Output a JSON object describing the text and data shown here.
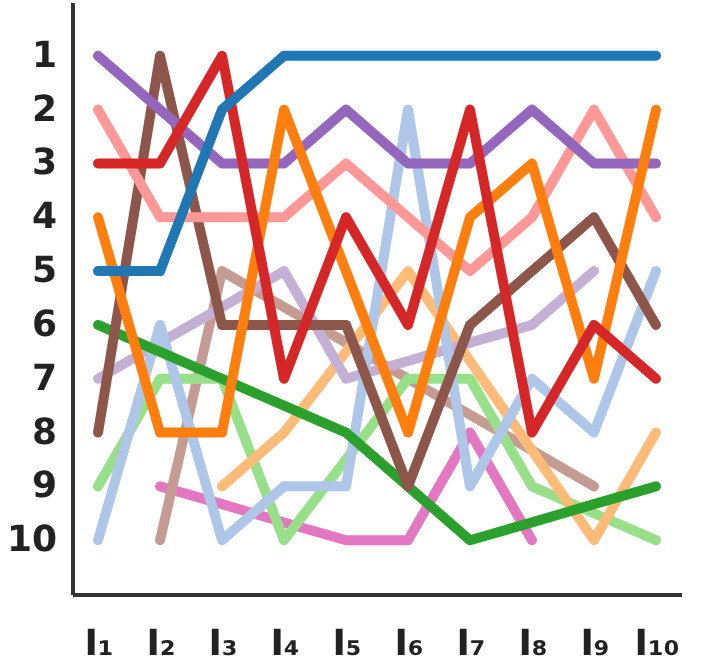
{
  "chart_data": {
    "type": "line",
    "categories": [
      "I₁",
      "I₂",
      "I₃",
      "I₄",
      "I₅",
      "I₆",
      "I₇",
      "I₈",
      "I₉",
      "I₁₀"
    ],
    "ylim": [
      11,
      0
    ],
    "yticks": [
      1,
      2,
      3,
      4,
      5,
      6,
      7,
      8,
      9,
      10
    ],
    "grid": false,
    "legend": false,
    "marker": "none",
    "line_style": "solid",
    "series": [
      {
        "color": "#e377c2",
        "values": [
          null,
          9,
          9.33,
          9.67,
          10,
          10,
          8,
          10,
          null,
          null
        ]
      },
      {
        "color": "#c49c94",
        "values": [
          null,
          10,
          5,
          5.67,
          6.33,
          7,
          7.67,
          8.33,
          9,
          null
        ]
      },
      {
        "color": "#98df8a",
        "values": [
          9,
          7,
          7,
          10,
          8.5,
          7,
          7,
          9,
          9.5,
          10
        ]
      },
      {
        "color": "#ffbb78",
        "values": [
          null,
          null,
          9,
          8,
          6.5,
          5,
          6.67,
          8.33,
          10,
          8
        ]
      },
      {
        "color": "#c5b0d5",
        "values": [
          7,
          6.33,
          5.67,
          5,
          7,
          6.67,
          6.33,
          6,
          5,
          null
        ]
      },
      {
        "color": "#aec7e8",
        "values": [
          10,
          6,
          10,
          9,
          9,
          2,
          9,
          7,
          8,
          5
        ]
      },
      {
        "color": "#2ca02c",
        "values": [
          6,
          6.5,
          7,
          7.5,
          8,
          9,
          10,
          9.67,
          9.33,
          9
        ]
      },
      {
        "color": "#8c564b",
        "values": [
          8,
          1,
          6,
          6,
          6,
          9,
          6,
          5,
          4,
          6
        ]
      },
      {
        "color": "#ff9896",
        "values": [
          2,
          4,
          4,
          4,
          3,
          4,
          5,
          4,
          2,
          4
        ]
      },
      {
        "color": "#9467bd",
        "values": [
          1,
          2,
          3,
          3,
          2,
          3,
          3,
          2,
          3,
          3
        ]
      },
      {
        "color": "#ff7f0e",
        "values": [
          4,
          8,
          8,
          2,
          5,
          8,
          4,
          3,
          7,
          2
        ]
      },
      {
        "color": "#d62728",
        "values": [
          3,
          3,
          1,
          7,
          4,
          6,
          2,
          8,
          6,
          7
        ]
      },
      {
        "color": "#1f77b4",
        "values": [
          5,
          5,
          2,
          1,
          1,
          1,
          1,
          1,
          1,
          1
        ]
      }
    ]
  }
}
